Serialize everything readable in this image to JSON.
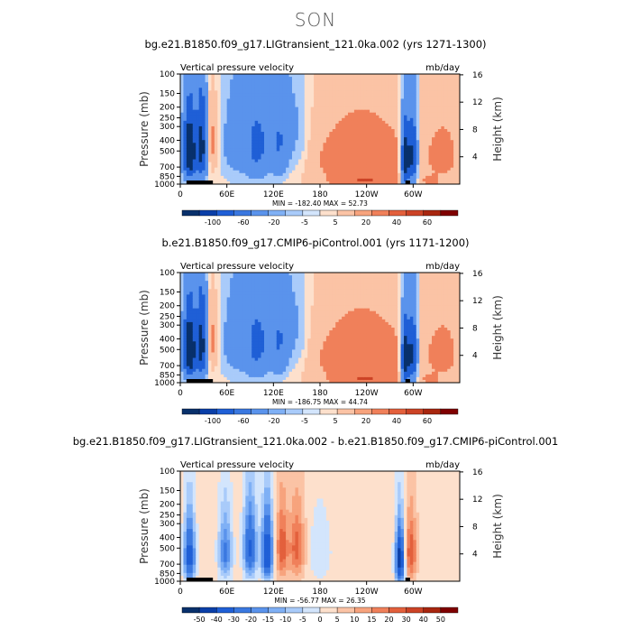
{
  "page": {
    "title": "SON"
  },
  "panels": [
    {
      "title": "bg.e21.B1850.f09_g17.LIGtransient_121.0ka.002 (yrs 1271-1300)",
      "variable": "Vertical pressure velocity",
      "units": "mb/day",
      "stats": "MIN = -182.40   MAX =  52.73",
      "colorbar_labels": [
        "-100",
        "-60",
        "-20",
        "-5",
        "5",
        "20",
        "40",
        "60"
      ],
      "colorbar_colors": [
        "#08306b",
        "#0a3fa8",
        "#1f5fd6",
        "#3a78e0",
        "#5a93ec",
        "#7fb0f5",
        "#a9cbfa",
        "#d3e5fc",
        "#fde0cc",
        "#fbc3a5",
        "#f7a37d",
        "#f0805a",
        "#e3603c",
        "#cc4326",
        "#a8260f",
        "#7f0000"
      ],
      "field": "control"
    },
    {
      "title": "b.e21.B1850.f09_g17.CMIP6-piControl.001 (yrs 1171-1200)",
      "variable": "Vertical pressure velocity",
      "units": "mb/day",
      "stats": "MIN = -186.75   MAX =  44.74",
      "colorbar_labels": [
        "-100",
        "-60",
        "-20",
        "-5",
        "5",
        "20",
        "40",
        "60"
      ],
      "colorbar_colors": [
        "#08306b",
        "#0a3fa8",
        "#1f5fd6",
        "#3a78e0",
        "#5a93ec",
        "#7fb0f5",
        "#a9cbfa",
        "#d3e5fc",
        "#fde0cc",
        "#fbc3a5",
        "#f7a37d",
        "#f0805a",
        "#e3603c",
        "#cc4326",
        "#a8260f",
        "#7f0000"
      ],
      "field": "control"
    },
    {
      "title": "bg.e21.B1850.f09_g17.LIGtransient_121.0ka.002 - b.e21.B1850.f09_g17.CMIP6-piControl.001",
      "variable": "Vertical pressure velocity",
      "units": "mb/day",
      "stats": "MIN = -56.77   MAX =  26.35",
      "colorbar_labels": [
        "-50",
        "-40",
        "-30",
        "-20",
        "-15",
        "-10",
        "-5",
        "0",
        "5",
        "10",
        "15",
        "20",
        "30",
        "40",
        "50"
      ],
      "colorbar_colors": [
        "#08306b",
        "#0a3fa8",
        "#1f5fd6",
        "#3a78e0",
        "#5a93ec",
        "#7fb0f5",
        "#a9cbfa",
        "#d3e5fc",
        "#fde0cc",
        "#fbc3a5",
        "#f7a37d",
        "#f0805a",
        "#e3603c",
        "#cc4326",
        "#a8260f",
        "#7f0000"
      ],
      "field": "diff"
    }
  ],
  "chart_data": [
    {
      "type": "heatmap",
      "title": "bg.e21.B1850.f09_g17.LIGtransient_121.0ka.002 (yrs 1271-1300)",
      "subtitle": "Vertical pressure velocity",
      "units": "mb/day",
      "xlim": [
        0,
        360
      ],
      "xticks": [
        "0",
        "60E",
        "120E",
        "180",
        "120W",
        "60W"
      ],
      "ylabel": "Pressure (mb)",
      "yticks": [
        "100",
        "150",
        "200",
        "250",
        "300",
        "400",
        "500",
        "700",
        "850",
        "1000"
      ],
      "ylim": [
        1000,
        100
      ],
      "y2label": "Height (km)",
      "y2ticks": [
        "4",
        "8",
        "12",
        "16"
      ],
      "min": -182.4,
      "max": 52.73,
      "contour_levels": [
        -100,
        -60,
        -20,
        -5,
        5,
        20,
        40,
        60
      ]
    },
    {
      "type": "heatmap",
      "title": "b.e21.B1850.f09_g17.CMIP6-piControl.001 (yrs 1171-1200)",
      "subtitle": "Vertical pressure velocity",
      "units": "mb/day",
      "xlim": [
        0,
        360
      ],
      "xticks": [
        "0",
        "60E",
        "120E",
        "180",
        "120W",
        "60W"
      ],
      "ylabel": "Pressure (mb)",
      "yticks": [
        "100",
        "150",
        "200",
        "250",
        "300",
        "400",
        "500",
        "700",
        "850",
        "1000"
      ],
      "ylim": [
        1000,
        100
      ],
      "y2label": "Height (km)",
      "y2ticks": [
        "4",
        "8",
        "12",
        "16"
      ],
      "min": -186.75,
      "max": 44.74,
      "contour_levels": [
        -100,
        -60,
        -20,
        -5,
        5,
        20,
        40,
        60
      ]
    },
    {
      "type": "heatmap",
      "title": "bg.e21.B1850.f09_g17.LIGtransient_121.0ka.002 - b.e21.B1850.f09_g17.CMIP6-piControl.001",
      "subtitle": "Vertical pressure velocity",
      "units": "mb/day",
      "xlim": [
        0,
        360
      ],
      "xticks": [
        "0",
        "60E",
        "120E",
        "180",
        "120W",
        "60W"
      ],
      "ylabel": "Pressure (mb)",
      "yticks": [
        "100",
        "150",
        "200",
        "250",
        "300",
        "400",
        "500",
        "700",
        "850",
        "1000"
      ],
      "ylim": [
        1000,
        100
      ],
      "y2label": "Height (km)",
      "y2ticks": [
        "4",
        "8",
        "12",
        "16"
      ],
      "min": -56.77,
      "max": 26.35,
      "contour_levels": [
        -50,
        -40,
        -30,
        -20,
        -15,
        -10,
        -5,
        0,
        5,
        10,
        15,
        20,
        30,
        40,
        50
      ]
    }
  ]
}
